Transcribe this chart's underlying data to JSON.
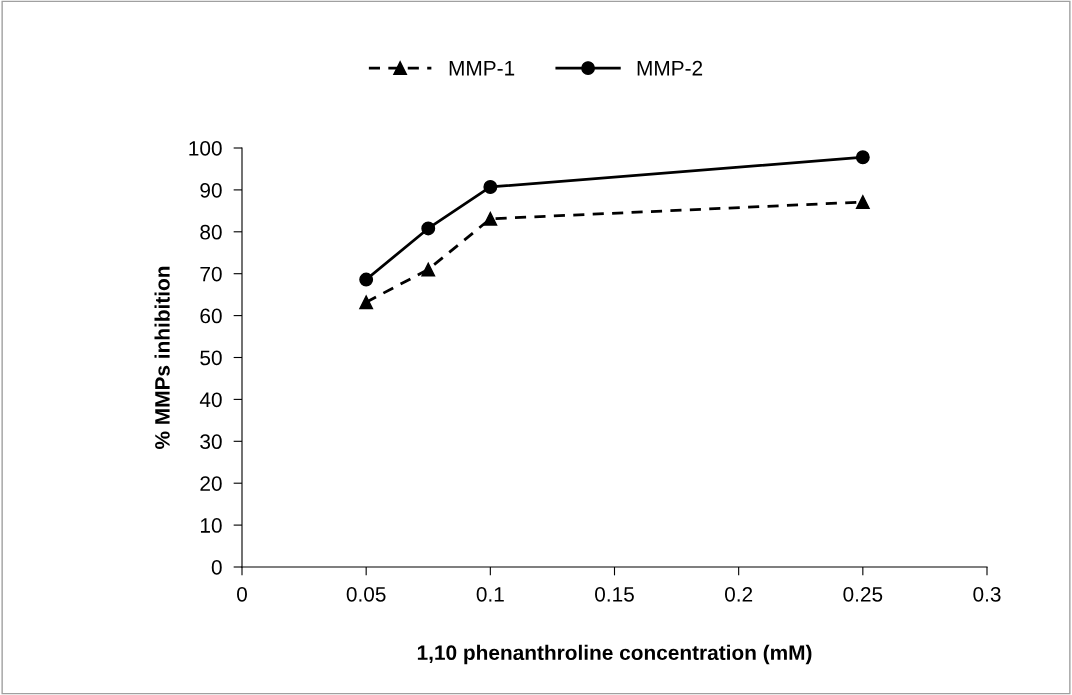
{
  "chart_data": {
    "type": "line",
    "xlabel": "1,10 phenanthroline concentration (mM)",
    "ylabel": "% MMPs inhibition",
    "xlim": [
      0,
      0.3
    ],
    "xticks": [
      0,
      0.05,
      0.1,
      0.15,
      0.2,
      0.25,
      0.3
    ],
    "ylim": [
      0,
      100
    ],
    "yticks": [
      0,
      10,
      20,
      30,
      40,
      50,
      60,
      70,
      80,
      90,
      100
    ],
    "grid": false,
    "legend": "top",
    "series": [
      {
        "name": "MMP-1",
        "color": "#000000",
        "x": [
          0.05,
          0.075,
          0.1,
          0.25
        ],
        "values": [
          63.2,
          71.0,
          83.1,
          87.1
        ],
        "marker": "triangle",
        "line_style": "dashed"
      },
      {
        "name": "MMP-2",
        "color": "#000000",
        "x": [
          0.05,
          0.075,
          0.1,
          0.25
        ],
        "values": [
          68.6,
          80.8,
          90.7,
          97.8
        ],
        "marker": "circle",
        "line_style": "solid"
      }
    ]
  }
}
